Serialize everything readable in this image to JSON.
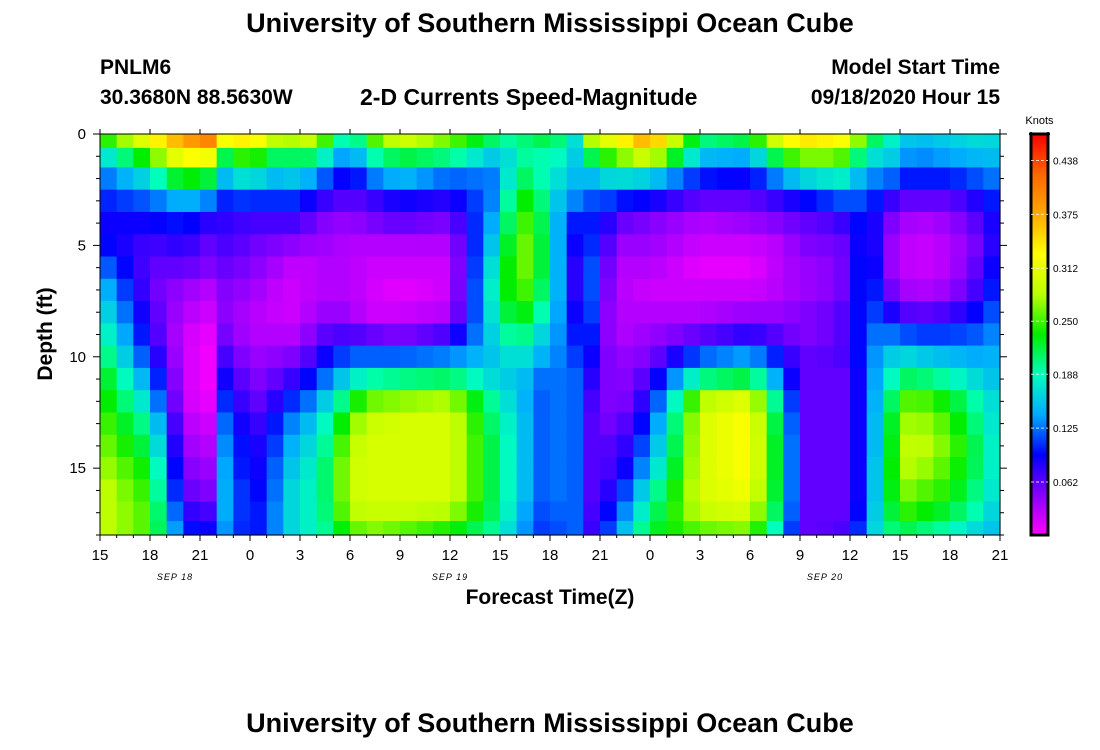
{
  "header": {
    "title": "University of Southern Mississippi Ocean Cube",
    "footer_title": "University of Southern Mississippi Ocean Cube",
    "station_id": "PNLM6",
    "station_coords": "30.3680N 88.5630W",
    "plot_title": "2-D Currents Speed-Magnitude",
    "model_start_label": "Model Start Time",
    "model_start_value": "09/18/2020 Hour 15"
  },
  "chart_data": {
    "type": "heatmap",
    "title": "2-D Currents Speed-Magnitude",
    "xlabel": "Forecast Time(Z)",
    "ylabel": "Depth (ft)",
    "x_tick_labels": [
      "15",
      "18",
      "21",
      "0",
      "3",
      "6",
      "9",
      "12",
      "15",
      "18",
      "21",
      "0",
      "3",
      "6",
      "9",
      "12",
      "15",
      "18",
      "21"
    ],
    "x_tick_hours": [
      0,
      3,
      6,
      9,
      12,
      15,
      18,
      21,
      24,
      27,
      30,
      33,
      36,
      39,
      42,
      45,
      48,
      51,
      54
    ],
    "date_labels": [
      {
        "label": "SEP 18",
        "hour": 4.5
      },
      {
        "label": "SEP 19",
        "hour": 21
      },
      {
        "label": "SEP 20",
        "hour": 43.5
      }
    ],
    "xlim_hours": [
      0,
      54
    ],
    "y_ticks": [
      0,
      5,
      10,
      15
    ],
    "ylim": [
      0,
      18
    ],
    "y_reversed": true,
    "colorbar": {
      "title": "Knots",
      "tick_labels": [
        "0.438",
        "0.375",
        "0.312",
        "0.250",
        "0.188",
        "0.125",
        "0.062"
      ],
      "tick_values": [
        0.438,
        0.375,
        0.312,
        0.25,
        0.188,
        0.125,
        0.062
      ],
      "range": [
        0,
        0.469
      ],
      "colormap": [
        "#ff00ff",
        "#8800ff",
        "#0000ff",
        "#00aaff",
        "#00ffbb",
        "#00ee00",
        "#bbff00",
        "#ffff00",
        "#ffaa00",
        "#ff6600",
        "#ff0000"
      ]
    },
    "grid": {
      "time_step_hours": 1,
      "depths": [
        0.25,
        1,
        2,
        3,
        4,
        5,
        6,
        7,
        8,
        9,
        10,
        11,
        12,
        13,
        14,
        15,
        16,
        17,
        17.75
      ],
      "time_anchors": [
        0,
        3,
        5,
        6.5,
        7,
        9,
        10,
        11,
        12,
        13,
        15,
        16,
        18,
        21,
        24,
        25,
        26,
        27,
        28,
        28.5,
        29,
        30,
        31,
        33,
        36,
        39,
        41,
        42,
        43,
        45,
        46,
        47,
        48,
        49,
        51,
        53,
        54
      ],
      "speed_profiles": [
        [
          0.23,
          0.16,
          0.12,
          0.1,
          0.09,
          0.1,
          0.13,
          0.16,
          0.18,
          0.2,
          0.22,
          0.24,
          0.25,
          0.26,
          0.27,
          0.28,
          0.29,
          0.29,
          0.29
        ],
        [
          0.32,
          0.25,
          0.17,
          0.12,
          0.09,
          0.07,
          0.06,
          0.06,
          0.07,
          0.08,
          0.1,
          0.13,
          0.16,
          0.19,
          0.21,
          0.23,
          0.24,
          0.25,
          0.25
        ],
        [
          0.38,
          0.33,
          0.24,
          0.15,
          0.1,
          0.08,
          0.06,
          0.04,
          0.03,
          0.02,
          0.02,
          0.02,
          0.02,
          0.03,
          0.04,
          0.05,
          0.06,
          0.08,
          0.1
        ],
        [
          0.4,
          0.32,
          0.22,
          0.13,
          0.08,
          0.06,
          0.05,
          0.03,
          0.02,
          0.01,
          0.005,
          0.005,
          0.01,
          0.02,
          0.03,
          0.04,
          0.05,
          0.07,
          0.09
        ],
        [
          0.32,
          0.2,
          0.14,
          0.1,
          0.08,
          0.07,
          0.06,
          0.05,
          0.05,
          0.06,
          0.08,
          0.1,
          0.12,
          0.14,
          0.15,
          0.16,
          0.16,
          0.16,
          0.15
        ],
        [
          0.34,
          0.26,
          0.18,
          0.11,
          0.07,
          0.06,
          0.05,
          0.04,
          0.03,
          0.03,
          0.04,
          0.05,
          0.06,
          0.07,
          0.08,
          0.08,
          0.09,
          0.09,
          0.09
        ],
        [
          0.31,
          0.22,
          0.15,
          0.1,
          0.07,
          0.05,
          0.04,
          0.03,
          0.025,
          0.03,
          0.04,
          0.05,
          0.06,
          0.08,
          0.09,
          0.1,
          0.1,
          0.11,
          0.11
        ],
        [
          0.26,
          0.2,
          0.15,
          0.11,
          0.07,
          0.05,
          0.03,
          0.02,
          0.02,
          0.03,
          0.05,
          0.07,
          0.1,
          0.12,
          0.13,
          0.14,
          0.15,
          0.15,
          0.15
        ],
        [
          0.3,
          0.22,
          0.16,
          0.1,
          0.07,
          0.04,
          0.02,
          0.02,
          0.02,
          0.03,
          0.05,
          0.08,
          0.11,
          0.14,
          0.16,
          0.17,
          0.18,
          0.18,
          0.18
        ],
        [
          0.28,
          0.2,
          0.13,
          0.08,
          0.05,
          0.04,
          0.03,
          0.03,
          0.04,
          0.06,
          0.08,
          0.11,
          0.14,
          0.16,
          0.17,
          0.18,
          0.18,
          0.18,
          0.18
        ],
        [
          0.16,
          0.12,
          0.08,
          0.06,
          0.04,
          0.03,
          0.03,
          0.03,
          0.04,
          0.07,
          0.12,
          0.17,
          0.22,
          0.26,
          0.28,
          0.29,
          0.29,
          0.28,
          0.25
        ],
        [
          0.24,
          0.18,
          0.12,
          0.07,
          0.05,
          0.03,
          0.02,
          0.02,
          0.02,
          0.06,
          0.12,
          0.19,
          0.26,
          0.29,
          0.3,
          0.3,
          0.3,
          0.29,
          0.27
        ],
        [
          0.3,
          0.22,
          0.15,
          0.09,
          0.06,
          0.03,
          0.02,
          0.01,
          0.02,
          0.05,
          0.12,
          0.2,
          0.27,
          0.3,
          0.3,
          0.3,
          0.3,
          0.29,
          0.26
        ],
        [
          0.26,
          0.2,
          0.12,
          0.08,
          0.05,
          0.03,
          0.02,
          0.02,
          0.03,
          0.07,
          0.13,
          0.21,
          0.28,
          0.3,
          0.3,
          0.3,
          0.3,
          0.28,
          0.24
        ],
        [
          0.2,
          0.15,
          0.13,
          0.14,
          0.16,
          0.18,
          0.2,
          0.21,
          0.2,
          0.18,
          0.16,
          0.16,
          0.18,
          0.19,
          0.2,
          0.2,
          0.2,
          0.2,
          0.19
        ],
        [
          0.19,
          0.19,
          0.22,
          0.25,
          0.26,
          0.27,
          0.27,
          0.26,
          0.24,
          0.21,
          0.18,
          0.16,
          0.16,
          0.17,
          0.17,
          0.17,
          0.17,
          0.16,
          0.15
        ],
        [
          0.22,
          0.2,
          0.2,
          0.22,
          0.24,
          0.25,
          0.25,
          0.24,
          0.22,
          0.19,
          0.16,
          0.14,
          0.13,
          0.13,
          0.13,
          0.13,
          0.13,
          0.12,
          0.12
        ],
        [
          0.21,
          0.18,
          0.18,
          0.19,
          0.19,
          0.19,
          0.19,
          0.18,
          0.16,
          0.14,
          0.13,
          0.11,
          0.11,
          0.11,
          0.11,
          0.11,
          0.11,
          0.11,
          0.1
        ],
        [
          0.2,
          0.19,
          0.16,
          0.12,
          0.1,
          0.1,
          0.1,
          0.11,
          0.12,
          0.13,
          0.13,
          0.14,
          0.14,
          0.14,
          0.14,
          0.14,
          0.14,
          0.13,
          0.13
        ],
        [
          0.17,
          0.16,
          0.15,
          0.13,
          0.1,
          0.09,
          0.08,
          0.08,
          0.09,
          0.1,
          0.11,
          0.12,
          0.12,
          0.12,
          0.12,
          0.12,
          0.12,
          0.12,
          0.12
        ],
        [
          0.26,
          0.2,
          0.14,
          0.11,
          0.1,
          0.12,
          0.15,
          0.16,
          0.16,
          0.14,
          0.12,
          0.1,
          0.08,
          0.07,
          0.06,
          0.06,
          0.06,
          0.06,
          0.06
        ],
        [
          0.3,
          0.23,
          0.16,
          0.12,
          0.1,
          0.09,
          0.08,
          0.07,
          0.06,
          0.06,
          0.06,
          0.06,
          0.06,
          0.06,
          0.07,
          0.07,
          0.07,
          0.08,
          0.09
        ],
        [
          0.32,
          0.26,
          0.17,
          0.1,
          0.06,
          0.04,
          0.03,
          0.03,
          0.03,
          0.03,
          0.04,
          0.04,
          0.04,
          0.05,
          0.06,
          0.07,
          0.09,
          0.11,
          0.13
        ],
        [
          0.38,
          0.3,
          0.16,
          0.09,
          0.05,
          0.04,
          0.03,
          0.02,
          0.03,
          0.04,
          0.05,
          0.07,
          0.09,
          0.11,
          0.13,
          0.15,
          0.18,
          0.2,
          0.22
        ],
        [
          0.2,
          0.15,
          0.1,
          0.06,
          0.03,
          0.02,
          0.01,
          0.02,
          0.03,
          0.06,
          0.12,
          0.2,
          0.28,
          0.3,
          0.3,
          0.3,
          0.3,
          0.29,
          0.26
        ],
        [
          0.22,
          0.14,
          0.09,
          0.06,
          0.04,
          0.02,
          0.01,
          0.02,
          0.04,
          0.08,
          0.14,
          0.22,
          0.31,
          0.33,
          0.33,
          0.33,
          0.32,
          0.3,
          0.27
        ],
        [
          0.32,
          0.24,
          0.14,
          0.08,
          0.05,
          0.03,
          0.03,
          0.03,
          0.04,
          0.06,
          0.09,
          0.12,
          0.16,
          0.18,
          0.19,
          0.19,
          0.19,
          0.18,
          0.16
        ],
        [
          0.34,
          0.26,
          0.16,
          0.09,
          0.06,
          0.05,
          0.04,
          0.04,
          0.05,
          0.05,
          0.06,
          0.06,
          0.06,
          0.06,
          0.06,
          0.06,
          0.06,
          0.06,
          0.06
        ],
        [
          0.34,
          0.27,
          0.17,
          0.1,
          0.06,
          0.05,
          0.04,
          0.04,
          0.05,
          0.05,
          0.06,
          0.06,
          0.06,
          0.06,
          0.06,
          0.06,
          0.06,
          0.06,
          0.06
        ],
        [
          0.32,
          0.25,
          0.18,
          0.12,
          0.08,
          0.06,
          0.06,
          0.06,
          0.07,
          0.07,
          0.07,
          0.06,
          0.06,
          0.06,
          0.06,
          0.06,
          0.06,
          0.06,
          0.07
        ],
        [
          0.22,
          0.16,
          0.12,
          0.11,
          0.11,
          0.12,
          0.13,
          0.13,
          0.12,
          0.12,
          0.12,
          0.12,
          0.12,
          0.12,
          0.12,
          0.12,
          0.12,
          0.13,
          0.14
        ],
        [
          0.2,
          0.18,
          0.14,
          0.09,
          0.06,
          0.05,
          0.05,
          0.07,
          0.1,
          0.13,
          0.15,
          0.16,
          0.17,
          0.18,
          0.18,
          0.19,
          0.19,
          0.19,
          0.19
        ],
        [
          0.16,
          0.14,
          0.1,
          0.06,
          0.04,
          0.03,
          0.03,
          0.04,
          0.07,
          0.12,
          0.17,
          0.21,
          0.25,
          0.27,
          0.28,
          0.28,
          0.27,
          0.25,
          0.22
        ],
        [
          0.15,
          0.13,
          0.1,
          0.06,
          0.03,
          0.02,
          0.02,
          0.03,
          0.06,
          0.11,
          0.16,
          0.21,
          0.26,
          0.28,
          0.29,
          0.28,
          0.26,
          0.24,
          0.21
        ],
        [
          0.16,
          0.14,
          0.1,
          0.06,
          0.04,
          0.03,
          0.03,
          0.04,
          0.07,
          0.11,
          0.15,
          0.19,
          0.23,
          0.25,
          0.26,
          0.25,
          0.24,
          0.22,
          0.19
        ],
        [
          0.17,
          0.15,
          0.12,
          0.09,
          0.07,
          0.06,
          0.07,
          0.08,
          0.1,
          0.12,
          0.14,
          0.16,
          0.18,
          0.19,
          0.2,
          0.2,
          0.19,
          0.18,
          0.16
        ],
        [
          0.16,
          0.15,
          0.13,
          0.11,
          0.1,
          0.1,
          0.11,
          0.12,
          0.13,
          0.14,
          0.15,
          0.15,
          0.16,
          0.16,
          0.16,
          0.16,
          0.16,
          0.15,
          0.15
        ]
      ]
    }
  }
}
